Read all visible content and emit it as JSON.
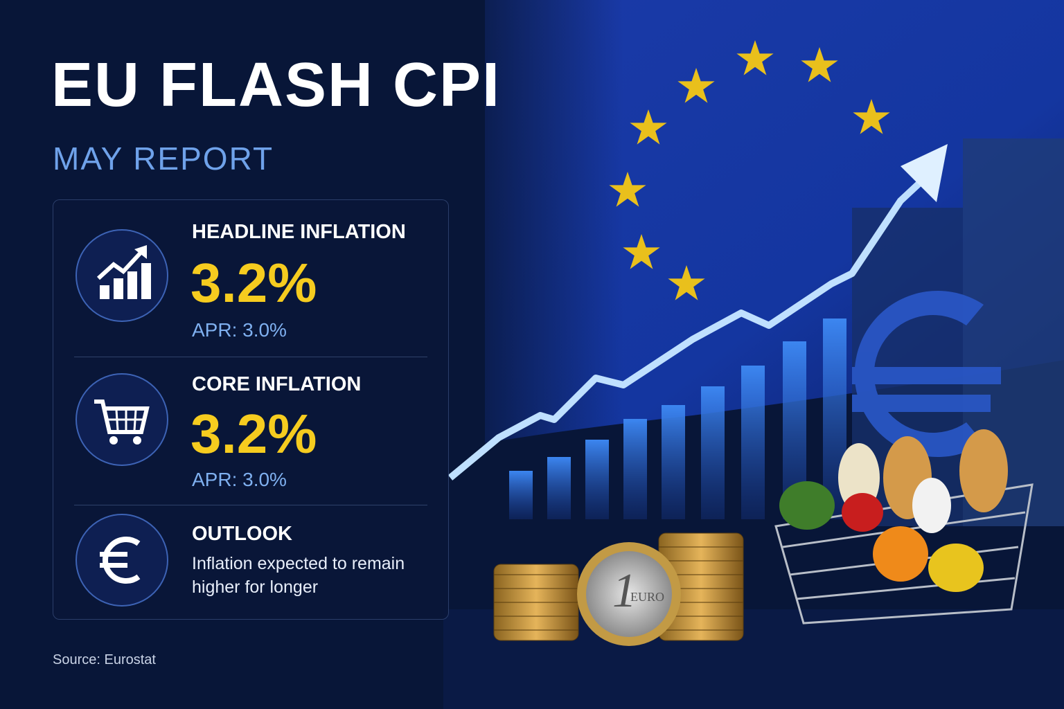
{
  "header": {
    "title": "EU FLASH CPI",
    "subtitle": "MAY REPORT"
  },
  "cards": [
    {
      "label": "HEADLINE INFLATION",
      "value": "3.2%",
      "previous": "APR: 3.0%"
    },
    {
      "label": "CORE INFLATION",
      "value": "3.2%",
      "previous": "APR: 3.0%"
    },
    {
      "label": "OUTLOOK",
      "text": "Inflation expected to remain higher for longer"
    }
  ],
  "coin": {
    "denomination": "1",
    "label": "EURO"
  },
  "footer": {
    "source": "Source: Eurostat"
  }
}
